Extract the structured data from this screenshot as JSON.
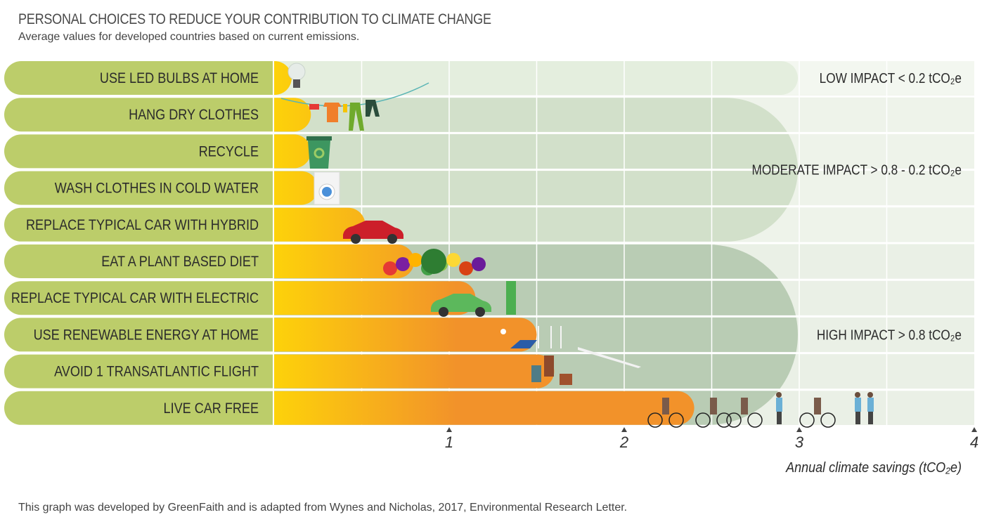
{
  "header": {
    "title": "PERSONAL CHOICES TO REDUCE YOUR CONTRIBUTION TO CLIMATE CHANGE",
    "subtitle": "Average values for developed countries based on current emissions."
  },
  "footer": {
    "credit": "This graph was developed by GreenFaith and is adapted from Wynes and Nicholas, 2017, Environmental Research Letter."
  },
  "colors": {
    "label_band": "#bccd6a",
    "bar_start": "#fdd20a",
    "bar_end": "#f2922a",
    "low_zone": "#e4eede",
    "moderate_zone": "#d2e0ca",
    "high_zone": "#b9ccb4",
    "grid_bg": "#eaf0e6",
    "text": "#2b2b2b"
  },
  "chart_data": {
    "type": "bar",
    "orientation": "horizontal",
    "title": "PERSONAL CHOICES TO REDUCE YOUR CONTRIBUTION TO CLIMATE CHANGE",
    "subtitle": "Average values for developed countries based on current emissions.",
    "xlabel": "Annual climate savings (tCO₂e)",
    "ylabel": "",
    "xlim": [
      0,
      4
    ],
    "xticks": [
      1,
      2,
      3,
      4
    ],
    "grid": true,
    "categories": [
      "USE LED BULBS AT HOME",
      "HANG DRY CLOTHES",
      "RECYCLE",
      "WASH CLOTHES IN COLD WATER",
      "REPLACE TYPICAL CAR WITH HYBRID",
      "EAT A PLANT BASED DIET",
      "REPLACE TYPICAL CAR WITH ELECTRIC",
      "USE RENEWABLE ENERGY AT HOME",
      "AVOID 1 TRANSATLANTIC FLIGHT",
      "LIVE CAR FREE"
    ],
    "values": [
      0.1,
      0.21,
      0.21,
      0.25,
      0.52,
      0.8,
      1.15,
      1.5,
      1.6,
      2.4
    ],
    "illustrations": [
      "light-bulb",
      "clothesline",
      "recycling-bin",
      "washing-machine",
      "red-hybrid-car",
      "fruits-and-vegetables",
      "green-electric-car-charging",
      "solar-panels-and-wind-turbines",
      "traveler-with-airplane",
      "cyclists-and-walkers"
    ],
    "impact_zones": [
      {
        "label": "LOW IMPACT < 0.2 tCO₂e",
        "rows": [
          0,
          0
        ]
      },
      {
        "label": "MODERATE IMPACT  > 0.8 - 0.2 tCO₂e",
        "rows": [
          1,
          4
        ]
      },
      {
        "label": "HIGH IMPACT  > 0.8 tCO₂e",
        "rows": [
          5,
          9
        ]
      }
    ]
  }
}
